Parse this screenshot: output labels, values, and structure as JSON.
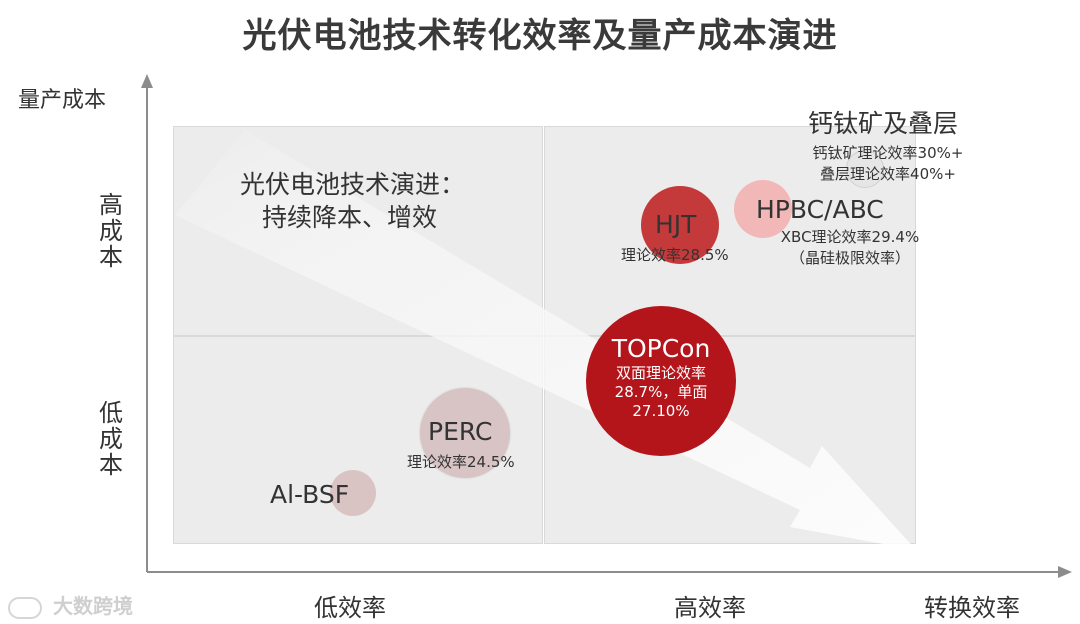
{
  "title": "光伏电池技术转化效率及量产成本演进",
  "axes": {
    "y_title": "量产成本",
    "y_high": "高成本",
    "y_low": "低成本",
    "x_low": "低效率",
    "x_high": "高效率",
    "x_title": "转换效率"
  },
  "panel_text": {
    "line1": "光伏电池技术演进：",
    "line2": "持续降本、增效"
  },
  "technologies": {
    "albsf": {
      "name": "Al-BSF",
      "color": "#d9c3c3"
    },
    "perc": {
      "name": "PERC",
      "note": "理论效率24.5%",
      "color": "#d8c4c4"
    },
    "topcon": {
      "name": "TOPCon",
      "note_line1": "双面理论效率",
      "note_line2": "28.7%，单面",
      "note_line3": "27.10%",
      "color": "#b3151b"
    },
    "hjt": {
      "name": "HJT",
      "note": "理论效率28.5%",
      "color": "#c43a3a"
    },
    "hpbc": {
      "name": "HPBC/ABC",
      "note_line1": "XBC理论效率29.4%",
      "note_line2": "（晶硅极限效率）",
      "color": "#f2b7b7"
    },
    "perovskite": {
      "name": "钙钛矿及叠层",
      "note_line1": "钙钛矿理论效率30%+",
      "note_line2": "叠层理论效率40%+",
      "color": "#e6e6e6"
    }
  },
  "watermark": "大数跨境"
}
